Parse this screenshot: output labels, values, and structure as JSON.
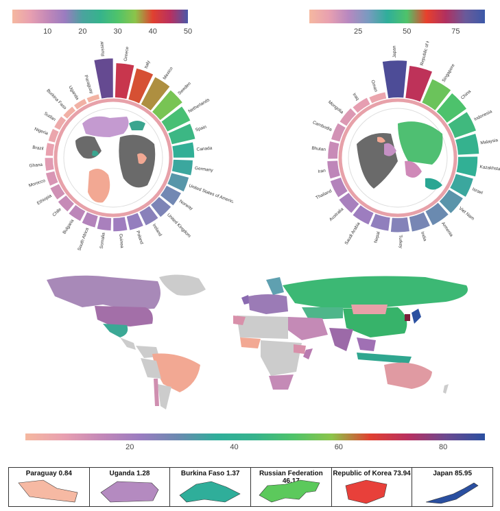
{
  "left_legend": {
    "ticks": [
      "10",
      "20",
      "30",
      "40",
      "50"
    ],
    "tick_values": [
      10,
      20,
      30,
      40,
      50
    ],
    "min": 0,
    "max": 50
  },
  "right_legend": {
    "ticks": [
      "25",
      "50",
      "75"
    ],
    "tick_values": [
      25,
      50,
      75
    ],
    "min": 0,
    "max": 90
  },
  "bottom_legend": {
    "ticks": [
      "20",
      "40",
      "60",
      "80"
    ],
    "tick_values": [
      20,
      40,
      60,
      80
    ],
    "min": 0,
    "max": 88
  },
  "left_circle": {
    "countries": [
      "Russian Federation",
      "Greece",
      "Italy",
      "Mexico",
      "Sweden",
      "Netherlands",
      "Spain",
      "Canada",
      "Germany",
      "United States of America",
      "Norway",
      "United Kingdom",
      "Ireland",
      "Poland",
      "Guinea",
      "Somalia",
      "South Africa",
      "Bulgaria",
      "Chile",
      "Ethiopia",
      "Morocco",
      "Ghana",
      "Brazil",
      "Nigeria",
      "Sudan",
      "Burkina Faso",
      "Uganda",
      "Paraguay"
    ],
    "values": [
      46.17,
      40,
      37,
      35,
      32,
      28,
      26,
      22,
      20,
      18,
      16,
      15,
      14,
      13,
      12,
      11,
      10,
      9,
      8,
      7,
      6,
      5,
      4,
      3.2,
      2.5,
      1.37,
      1.28,
      0.84
    ]
  },
  "right_circle": {
    "countries": [
      "Japan",
      "Republic of Korea",
      "Singapore",
      "China",
      "Indonesia",
      "Malaysia",
      "Kazakhstan",
      "Israel",
      "Viet Nam",
      "Armenia",
      "India",
      "Turkey",
      "Nepal",
      "Saudi Arabia",
      "Australia",
      "Thailand",
      "Iran",
      "Bhutan",
      "Cambodia",
      "Mongolia",
      "Iraq",
      "Oman"
    ],
    "values": [
      85.95,
      73.94,
      56,
      52,
      48,
      44,
      40,
      36,
      32,
      30,
      28,
      26,
      24,
      22,
      20,
      18,
      16,
      14,
      12,
      10,
      8,
      6
    ]
  },
  "bottom_panels": [
    {
      "label": "Paraguay 0.84",
      "color": "#f6b9a3"
    },
    {
      "label": "Uganda 1.28",
      "color": "#b48ac0"
    },
    {
      "label": "Burkina Faso 1.37",
      "color": "#2fae9a"
    },
    {
      "label": "Russian Federation 46.17",
      "color": "#5cc95c"
    },
    {
      "label": "Republic of Korea 73.94",
      "color": "#e8403a"
    },
    {
      "label": "Japan 85.95",
      "color": "#2a4fa0"
    }
  ]
}
